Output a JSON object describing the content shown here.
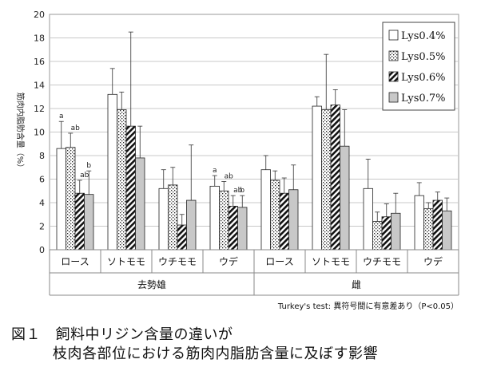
{
  "chart_data": {
    "type": "bar",
    "title": "",
    "ylabel": "筋肉内脂肪含量（%）",
    "xlabel": "",
    "ylim": [
      0,
      20
    ],
    "yticks": [
      "0",
      "2",
      "4",
      "6",
      "8",
      "10",
      "12",
      "14",
      "16",
      "18",
      "20"
    ],
    "grid": true,
    "legend_position": "top-right",
    "groups": [
      "去勢雄",
      "雌"
    ],
    "categories": [
      "ロース",
      "ソトモモ",
      "ウチモモ",
      "ウデ",
      "ロース",
      "ソトモモ",
      "ウチモモ",
      "ウデ"
    ],
    "series": [
      {
        "name": "Lys0.4%",
        "pattern": "white",
        "values": [
          8.6,
          13.2,
          5.2,
          5.4,
          6.8,
          12.2,
          5.2,
          4.6
        ],
        "errors": [
          2.3,
          2.2,
          1.6,
          0.9,
          1.2,
          0.8,
          2.5,
          1.1
        ]
      },
      {
        "name": "Lys0.5%",
        "pattern": "dots",
        "values": [
          8.7,
          11.9,
          5.5,
          5.0,
          5.9,
          11.9,
          2.4,
          3.5
        ],
        "errors": [
          1.2,
          1.5,
          1.5,
          0.8,
          0.8,
          4.7,
          0.8,
          0.5
        ]
      },
      {
        "name": "Lys0.6%",
        "pattern": "hatch",
        "values": [
          4.8,
          10.5,
          2.1,
          3.7,
          4.8,
          12.3,
          2.8,
          4.2
        ],
        "errors": [
          1.1,
          8.0,
          0.9,
          0.9,
          1.3,
          1.3,
          1.1,
          0.7
        ]
      },
      {
        "name": "Lys0.7%",
        "pattern": "gray",
        "values": [
          4.7,
          7.8,
          4.2,
          3.6,
          5.1,
          8.8,
          3.1,
          3.3
        ],
        "errors": [
          2.0,
          2.7,
          4.7,
          1.0,
          2.1,
          3.1,
          1.7,
          1.1
        ]
      }
    ],
    "annotations": [
      {
        "category": 0,
        "series": 0,
        "text": "a"
      },
      {
        "category": 0,
        "series": 1,
        "text": "ab"
      },
      {
        "category": 0,
        "series": 2,
        "text": "ab"
      },
      {
        "category": 0,
        "series": 3,
        "text": "b"
      },
      {
        "category": 3,
        "series": 0,
        "text": "a"
      },
      {
        "category": 3,
        "series": 1,
        "text": "ab"
      },
      {
        "category": 3,
        "series": 2,
        "text": "ab"
      },
      {
        "category": 3,
        "series": 3,
        "text": "b"
      }
    ]
  },
  "note": "Turkey's test: 異符号間に有意差あり（P<0.05）",
  "caption": {
    "line1": "図１　飼料中リジン含量の違いが",
    "line2": "枝肉各部位における筋肉内脂肪含量に及ぼす影響"
  }
}
